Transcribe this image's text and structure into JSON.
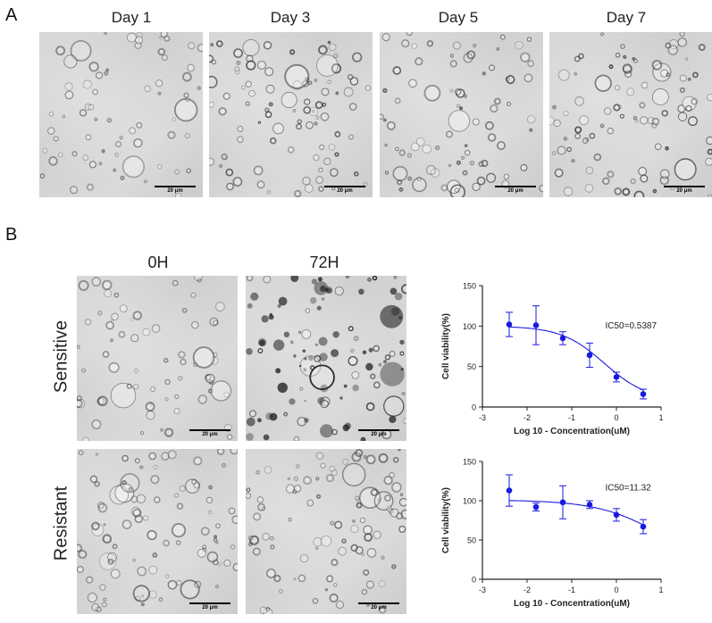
{
  "panel_a": {
    "letter": "A",
    "days": [
      "Day 1",
      "Day 3",
      "Day 5",
      "Day 7"
    ],
    "scale_label": "20 μm"
  },
  "panel_b": {
    "letter": "B",
    "timepoints": [
      "0H",
      "72H"
    ],
    "rows": [
      "Sensitive",
      "Resistant"
    ],
    "scale_label": "20 μm"
  },
  "chart_data": [
    {
      "type": "scatter",
      "title": "",
      "xlabel": "Log 10 - Concentration(uM)",
      "ylabel": "Cell viability(%)",
      "xlim": [
        -3,
        1
      ],
      "ylim": [
        0,
        150
      ],
      "xticks": [
        "-3",
        "-2",
        "-1",
        "0",
        "1"
      ],
      "yticks": [
        "0",
        "50",
        "100",
        "150"
      ],
      "annotation": "IC50=0.5387",
      "fit": "sigmoid",
      "points": [
        {
          "x": -2.4,
          "y": 102,
          "err": 15
        },
        {
          "x": -1.8,
          "y": 101,
          "err": 24
        },
        {
          "x": -1.2,
          "y": 85,
          "err": 8
        },
        {
          "x": -0.6,
          "y": 64,
          "err": 15
        },
        {
          "x": 0.0,
          "y": 37,
          "err": 6
        },
        {
          "x": 0.6,
          "y": 16,
          "err": 6
        }
      ],
      "curve": {
        "top": 100,
        "bottom": 8,
        "ic50_log": -0.27,
        "hill": 0.9
      },
      "color": "#1a1adf"
    },
    {
      "type": "scatter",
      "title": "",
      "xlabel": "Log 10 - Concentration(uM)",
      "ylabel": "Cell viability(%)",
      "xlim": [
        -3,
        1
      ],
      "ylim": [
        0,
        150
      ],
      "xticks": [
        "-3",
        "-2",
        "-1",
        "0",
        "1"
      ],
      "yticks": [
        "0",
        "50",
        "100",
        "150"
      ],
      "annotation": "IC50=11.32",
      "fit": "sigmoid",
      "points": [
        {
          "x": -2.4,
          "y": 113,
          "err": 20
        },
        {
          "x": -1.8,
          "y": 92,
          "err": 5
        },
        {
          "x": -1.2,
          "y": 98,
          "err": 21
        },
        {
          "x": -0.6,
          "y": 95,
          "err": 5
        },
        {
          "x": 0.0,
          "y": 82,
          "err": 8
        },
        {
          "x": 0.6,
          "y": 67,
          "err": 9
        }
      ],
      "curve": {
        "top": 101,
        "bottom": 10,
        "ic50_log": 1.05,
        "hill": 0.6
      },
      "color": "#1a1adf"
    }
  ]
}
